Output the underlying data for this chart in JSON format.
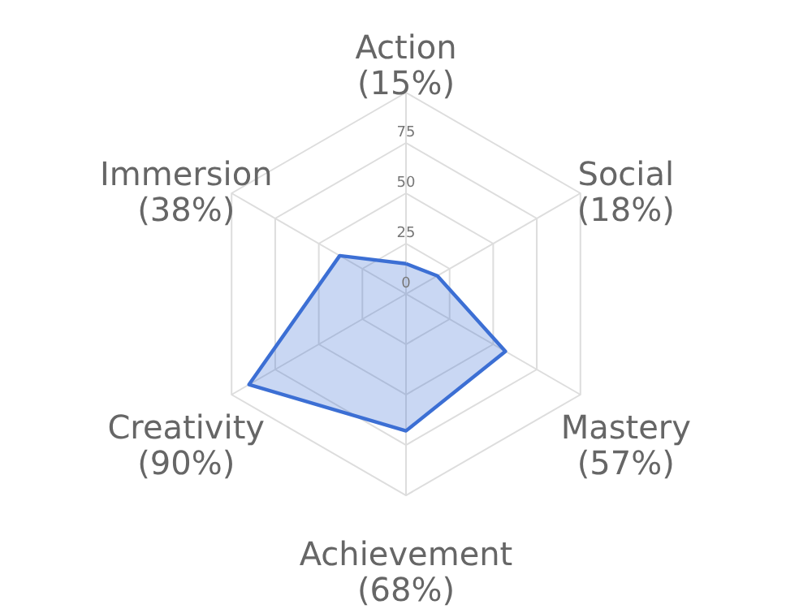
{
  "chart_data": {
    "type": "radar",
    "categories": [
      "Action\n(15%)",
      "Social\n(18%)",
      "Mastery\n(57%)",
      "Achievement\n(68%)",
      "Creativity\n(90%)",
      "Immersion\n(38%)"
    ],
    "series": [
      {
        "color": "#3c6fd4",
        "values": [
          15,
          18,
          57,
          68,
          90,
          38
        ]
      }
    ],
    "ylim": [
      0,
      100
    ],
    "yticks": [
      0,
      25,
      50,
      75
    ],
    "grid": true
  }
}
